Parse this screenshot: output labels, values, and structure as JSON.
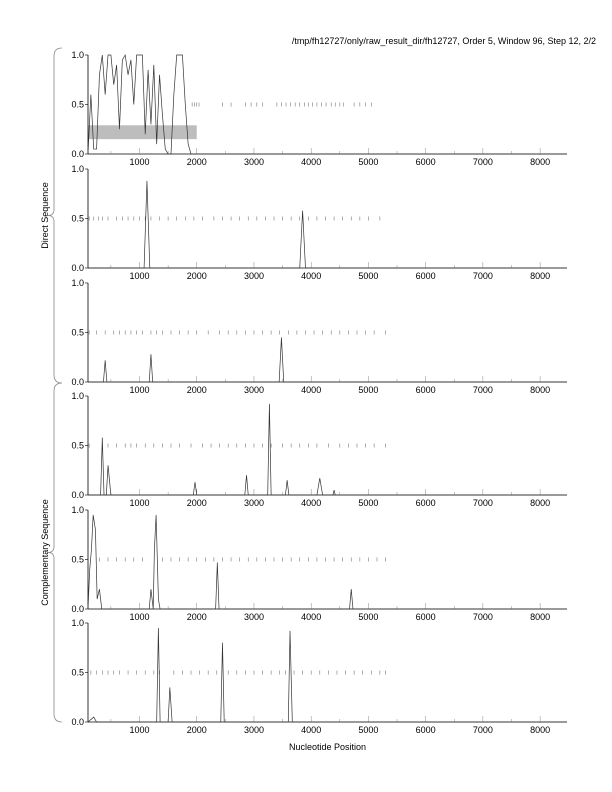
{
  "title": "/tmp/fh12727/only/raw_result_dir/fh12727, Order 5, Window 96, Step 12, 2/2",
  "groups": [
    {
      "label": "Direct Sequence"
    },
    {
      "label": "Complementary Sequence"
    }
  ],
  "chart_data": {
    "type": "line",
    "xlabel": "Nucleotide Position",
    "xlim": [
      100,
      8470
    ],
    "ylim": [
      0,
      1
    ],
    "xticks": [
      "1000",
      "2000",
      "3000",
      "4000",
      "5000",
      "6000",
      "7000",
      "8000"
    ],
    "yticks": [
      "0.0",
      "0.5",
      "1.0"
    ],
    "panels": [
      {
        "group": "Direct Sequence",
        "series": [
          [
            100,
            0
          ],
          [
            150,
            0.6
          ],
          [
            200,
            0.05
          ],
          [
            250,
            0.05
          ],
          [
            300,
            0.8
          ],
          [
            350,
            1.0
          ],
          [
            400,
            0.6
          ],
          [
            450,
            1.0
          ],
          [
            500,
            1.0
          ],
          [
            550,
            0.7
          ],
          [
            600,
            0.9
          ],
          [
            650,
            0.25
          ],
          [
            700,
            0.95
          ],
          [
            750,
            1.0
          ],
          [
            800,
            0.8
          ],
          [
            850,
            0.95
          ],
          [
            900,
            0.5
          ],
          [
            950,
            1.0
          ],
          [
            1050,
            1.0
          ],
          [
            1100,
            0.2
          ],
          [
            1150,
            0.85
          ],
          [
            1200,
            0.3
          ],
          [
            1250,
            0.9
          ],
          [
            1300,
            0.1
          ],
          [
            1350,
            0.8
          ],
          [
            1400,
            0.4
          ],
          [
            1450,
            0.05
          ],
          [
            1500,
            0
          ],
          [
            1550,
            0
          ],
          [
            1600,
            0.6
          ],
          [
            1650,
            1.0
          ],
          [
            1750,
            1.0
          ],
          [
            1800,
            0.5
          ],
          [
            1850,
            0.1
          ],
          [
            1900,
            0
          ],
          [
            8470,
            0
          ]
        ],
        "stops": [
          1920,
          1960,
          2000,
          2040,
          2450,
          2600,
          2850,
          2950,
          3050,
          3150,
          3400,
          3480,
          3560,
          3640,
          3720,
          3800,
          3880,
          3950,
          4020,
          4100,
          4180,
          4260,
          4350,
          4420,
          4500,
          4560,
          4750,
          4850,
          4950,
          5050
        ],
        "highlight": {
          "x": [
            100,
            2000
          ],
          "y": [
            0.15,
            0.29
          ]
        }
      },
      {
        "group": "Direct Sequence",
        "series": [
          [
            100,
            0
          ],
          [
            1080,
            0
          ],
          [
            1130,
            0.88
          ],
          [
            1180,
            0
          ],
          [
            3800,
            0
          ],
          [
            3850,
            0.58
          ],
          [
            3900,
            0
          ],
          [
            8470,
            0
          ]
        ],
        "stops": [
          120,
          200,
          280,
          350,
          450,
          600,
          700,
          800,
          900,
          1000,
          1100,
          1200,
          1350,
          1500,
          1650,
          1800,
          1950,
          2100,
          2300,
          2450,
          2600,
          2750,
          2900,
          3050,
          3200,
          3350,
          3500,
          3650,
          3800,
          3950,
          4100,
          4250,
          4400,
          4550,
          4700,
          4850,
          5000,
          5200
        ]
      },
      {
        "group": "Direct Sequence",
        "series": [
          [
            100,
            0
          ],
          [
            370,
            0
          ],
          [
            400,
            0.22
          ],
          [
            430,
            0
          ],
          [
            1170,
            0
          ],
          [
            1200,
            0.28
          ],
          [
            1230,
            0
          ],
          [
            3440,
            0
          ],
          [
            3480,
            0.45
          ],
          [
            3520,
            0
          ],
          [
            8470,
            0
          ]
        ],
        "stops": [
          120,
          250,
          400,
          550,
          650,
          750,
          850,
          950,
          1050,
          1200,
          1300,
          1400,
          1550,
          1700,
          1850,
          2000,
          2200,
          2400,
          2550,
          2700,
          2850,
          3000,
          3150,
          3300,
          3450,
          3600,
          3750,
          3900,
          4050,
          4200,
          4350,
          4500,
          4650,
          4800,
          4950,
          5100,
          5300
        ]
      },
      {
        "group": "Complementary Sequence",
        "series": [
          [
            100,
            0
          ],
          [
            320,
            0
          ],
          [
            350,
            0.58
          ],
          [
            380,
            0
          ],
          [
            420,
            0
          ],
          [
            450,
            0.3
          ],
          [
            500,
            0
          ],
          [
            1940,
            0
          ],
          [
            1970,
            0.13
          ],
          [
            2000,
            0
          ],
          [
            2840,
            0
          ],
          [
            2870,
            0.2
          ],
          [
            2900,
            0
          ],
          [
            3240,
            0
          ],
          [
            3270,
            0.92
          ],
          [
            3300,
            0
          ],
          [
            3550,
            0
          ],
          [
            3580,
            0.15
          ],
          [
            3610,
            0
          ],
          [
            4100,
            0
          ],
          [
            4150,
            0.17
          ],
          [
            4200,
            0
          ],
          [
            4380,
            0
          ],
          [
            4400,
            0.05
          ],
          [
            4420,
            0
          ],
          [
            8470,
            0
          ]
        ],
        "stops": [
          120,
          450,
          600,
          750,
          850,
          950,
          1100,
          1250,
          1400,
          1550,
          1700,
          1900,
          2100,
          2250,
          2400,
          2550,
          2700,
          2850,
          3000,
          3150,
          3300,
          3500,
          3650,
          3800,
          3950,
          4100,
          4300,
          4500,
          4650,
          4800,
          4950,
          5100,
          5300
        ]
      },
      {
        "group": "Complementary Sequence",
        "series": [
          [
            100,
            0
          ],
          [
            130,
            0.4
          ],
          [
            160,
            0.6
          ],
          [
            190,
            0.95
          ],
          [
            230,
            0.8
          ],
          [
            260,
            0.1
          ],
          [
            300,
            0.2
          ],
          [
            340,
            0
          ],
          [
            1170,
            0
          ],
          [
            1200,
            0.2
          ],
          [
            1240,
            0
          ],
          [
            1260,
            0.6
          ],
          [
            1290,
            0.95
          ],
          [
            1330,
            0.1
          ],
          [
            1360,
            0
          ],
          [
            2330,
            0
          ],
          [
            2360,
            0.47
          ],
          [
            2390,
            0
          ],
          [
            4670,
            0
          ],
          [
            4700,
            0.2
          ],
          [
            4730,
            0
          ],
          [
            8470,
            0
          ]
        ],
        "stops": [
          300,
          450,
          600,
          750,
          900,
          1050,
          1400,
          1550,
          1700,
          1850,
          2000,
          2150,
          2300,
          2450,
          2600,
          2750,
          2900,
          3050,
          3200,
          3350,
          3500,
          3650,
          3800,
          3950,
          4100,
          4250,
          4400,
          4550,
          4700,
          4850,
          5000,
          5150,
          5300
        ]
      },
      {
        "group": "Complementary Sequence",
        "series": [
          [
            100,
            0
          ],
          [
            200,
            0.05
          ],
          [
            250,
            0
          ],
          [
            1300,
            0
          ],
          [
            1330,
            0.95
          ],
          [
            1360,
            0
          ],
          [
            1500,
            0
          ],
          [
            1530,
            0.35
          ],
          [
            1570,
            0
          ],
          [
            2420,
            0
          ],
          [
            2450,
            0.8
          ],
          [
            2480,
            0
          ],
          [
            3600,
            0
          ],
          [
            3630,
            0.92
          ],
          [
            3670,
            0
          ],
          [
            8470,
            0
          ]
        ],
        "stops": [
          150,
          250,
          350,
          450,
          550,
          650,
          800,
          950,
          1100,
          1250,
          1350,
          1600,
          1750,
          1900,
          2050,
          2200,
          2350,
          2550,
          2700,
          2850,
          3000,
          3150,
          3300,
          3450,
          3550,
          3700,
          3850,
          4000,
          4150,
          4300,
          4450,
          4600,
          4750,
          4900,
          5050,
          5200,
          5300
        ]
      }
    ]
  }
}
